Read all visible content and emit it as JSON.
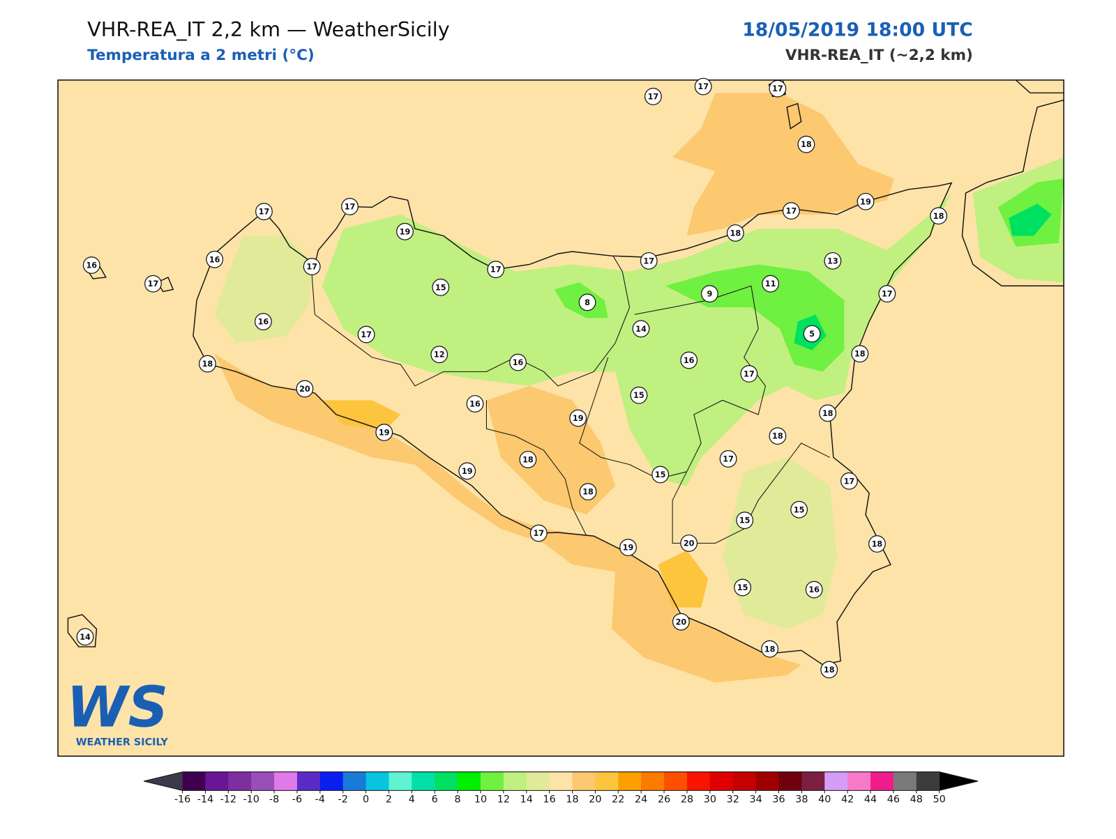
{
  "header": {
    "title": "VHR-REA_IT 2,2 km — WeatherSicily",
    "subtitle": "Temperatura a 2 metri (°C)",
    "datetime": "18/05/2019 18:00 UTC",
    "model": "VHR-REA_IT (~2,2 km)"
  },
  "map": {
    "background_color": "#fde3a7",
    "stations": [
      17,
      17,
      17,
      18,
      19,
      18,
      17,
      18,
      17,
      13,
      11,
      9,
      17,
      5,
      18,
      16,
      17,
      14,
      8,
      17,
      15,
      19,
      17,
      17,
      16,
      17,
      16,
      17,
      16,
      17,
      12,
      16,
      18,
      20,
      16,
      19,
      15,
      18,
      18,
      19,
      18,
      17,
      19,
      15,
      17,
      18,
      15,
      15,
      17,
      19,
      20,
      18,
      15,
      16,
      20,
      18,
      18,
      14
    ]
  },
  "colorbar": {
    "ticks": [
      -16,
      -14,
      -12,
      -10,
      -8,
      -6,
      -4,
      -2,
      0,
      2,
      4,
      6,
      8,
      10,
      12,
      14,
      16,
      18,
      20,
      22,
      24,
      26,
      28,
      30,
      32,
      34,
      36,
      38,
      40,
      42,
      44,
      46,
      48,
      50
    ],
    "colors": [
      "#40004f",
      "#6a1596",
      "#7d2fa0",
      "#9a4fb8",
      "#e07ae8",
      "#5b2bc8",
      "#0a1ef0",
      "#1a7ad8",
      "#08c4e0",
      "#5ef2d0",
      "#00e0a8",
      "#00e060",
      "#00f000",
      "#70f040",
      "#c0f080",
      "#e0ea98",
      "#fde3a7",
      "#fcc870",
      "#fdc43e",
      "#fca000",
      "#fc7a00",
      "#fc5000",
      "#f81400",
      "#e00000",
      "#c40000",
      "#9e0000",
      "#700010",
      "#7a2040",
      "#d59cf8",
      "#f77ac8",
      "#f01c8c",
      "#7a7a7a",
      "#3c3c3c"
    ],
    "under_color": "#3a3a4a",
    "over_color": "#000000"
  },
  "logo": {
    "letters": "WS",
    "name": "WEATHER SICILY"
  }
}
